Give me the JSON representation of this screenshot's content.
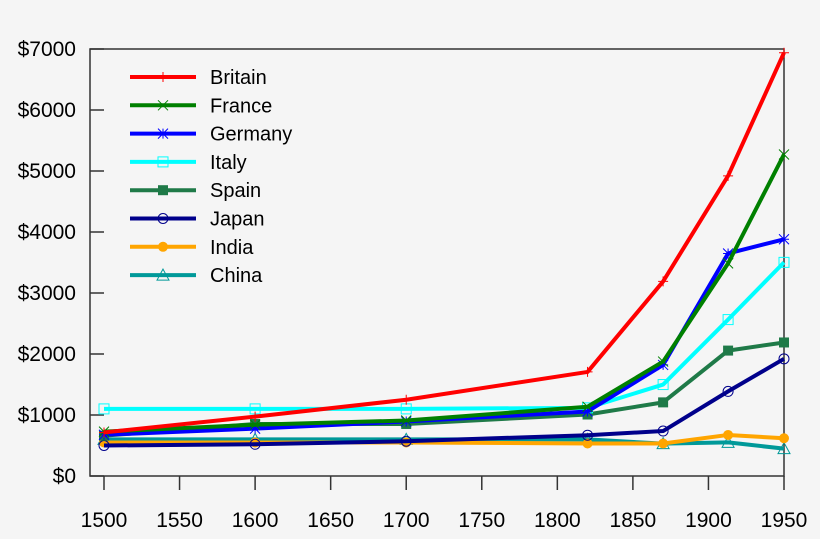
{
  "chart_data": {
    "type": "line",
    "title": "",
    "xlabel": "",
    "ylabel": "",
    "xlim": [
      1500,
      1950
    ],
    "ylim": [
      0,
      7000
    ],
    "x_ticks": [
      "1500",
      "1550",
      "1600",
      "1650",
      "1700",
      "1750",
      "1800",
      "1850",
      "1900",
      "1950"
    ],
    "y_ticks": [
      "$0",
      "$1000",
      "$2000",
      "$3000",
      "$4000",
      "$5000",
      "$6000",
      "$7000"
    ],
    "grid": false,
    "legend_position": "top-left",
    "x": [
      1500,
      1600,
      1700,
      1820,
      1870,
      1913,
      1950
    ],
    "series": [
      {
        "name": "Britain",
        "color": "#ff0000",
        "marker": "plus",
        "values": [
          714,
          974,
          1250,
          1706,
          3190,
          4921,
          6939
        ]
      },
      {
        "name": "France",
        "color": "#008000",
        "marker": "cross",
        "values": [
          727,
          841,
          910,
          1135,
          1876,
          3485,
          5271
        ]
      },
      {
        "name": "Germany",
        "color": "#0000ff",
        "marker": "star",
        "values": [
          676,
          777,
          894,
          1058,
          1821,
          3648,
          3881
        ]
      },
      {
        "name": "Italy",
        "color": "#00ffff",
        "marker": "open-square",
        "values": [
          1100,
          1100,
          1100,
          1117,
          1499,
          2564,
          3502
        ]
      },
      {
        "name": "Spain",
        "color": "#1f7a48",
        "marker": "filled-square",
        "values": [
          661,
          853,
          853,
          1008,
          1207,
          2056,
          2189
        ]
      },
      {
        "name": "Japan",
        "color": "#00008b",
        "marker": "open-circle",
        "values": [
          500,
          520,
          570,
          669,
          737,
          1387,
          1921
        ]
      },
      {
        "name": "India",
        "color": "#ffa500",
        "marker": "filled-circle",
        "values": [
          550,
          550,
          550,
          533,
          533,
          673,
          619
        ]
      },
      {
        "name": "China",
        "color": "#009999",
        "marker": "open-triangle",
        "values": [
          600,
          600,
          600,
          600,
          530,
          552,
          448
        ]
      }
    ]
  }
}
